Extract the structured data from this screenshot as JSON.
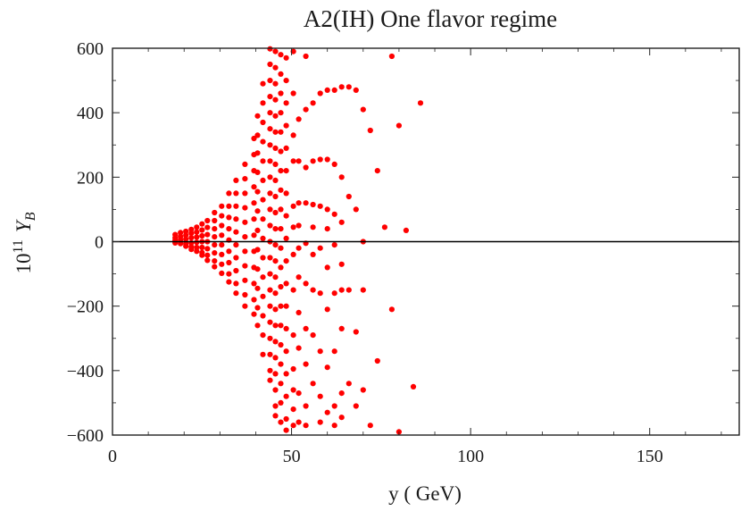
{
  "chart_data": {
    "type": "scatter",
    "title": "A2(IH) One flavor regime",
    "xlabel": "y ( GeV)",
    "ylabel": {
      "prefix": "10",
      "exponent": "11",
      "variable": "Y",
      "subscript": "B"
    },
    "xlim": [
      0,
      175
    ],
    "ylim": [
      -600,
      600
    ],
    "x_ticks": [
      0,
      50,
      100,
      150
    ],
    "x_tick_labels": [
      "0",
      "50",
      "100",
      "150"
    ],
    "y_ticks": [
      600,
      400,
      200,
      0,
      -200,
      -400,
      -600
    ],
    "y_tick_labels": [
      "600",
      "400",
      "200",
      "0",
      "−200",
      "−400",
      "−600"
    ],
    "zero_line": true,
    "grid": false,
    "marker_color": "#ff0000",
    "series": [
      {
        "points": [
          [
            17.5,
            22
          ],
          [
            17.5,
            12
          ],
          [
            17.5,
            4
          ],
          [
            17.5,
            -4
          ],
          [
            19,
            28
          ],
          [
            19,
            16
          ],
          [
            19,
            6
          ],
          [
            19,
            -6
          ],
          [
            20.5,
            32
          ],
          [
            20.5,
            20
          ],
          [
            20.5,
            8
          ],
          [
            20.5,
            -6
          ],
          [
            20.5,
            -14
          ],
          [
            22,
            38
          ],
          [
            22,
            26
          ],
          [
            22,
            12
          ],
          [
            22,
            -4
          ],
          [
            22,
            -16
          ],
          [
            22,
            -24
          ],
          [
            23.5,
            45
          ],
          [
            23.5,
            30
          ],
          [
            23.5,
            14
          ],
          [
            23.5,
            -2
          ],
          [
            23.5,
            -18
          ],
          [
            23.5,
            -30
          ],
          [
            25,
            55
          ],
          [
            25,
            36
          ],
          [
            25,
            18
          ],
          [
            25,
            0
          ],
          [
            25,
            -18
          ],
          [
            25,
            -34
          ],
          [
            25,
            -42
          ],
          [
            26.5,
            65
          ],
          [
            26.5,
            44
          ],
          [
            26.5,
            22
          ],
          [
            26.5,
            0
          ],
          [
            26.5,
            -22
          ],
          [
            26.5,
            -42
          ],
          [
            26.5,
            -58
          ],
          [
            28.5,
            90
          ],
          [
            28.5,
            65
          ],
          [
            28.5,
            40
          ],
          [
            28.5,
            15
          ],
          [
            28.5,
            -10
          ],
          [
            28.5,
            -35
          ],
          [
            28.5,
            -60
          ],
          [
            28.5,
            -78
          ],
          [
            30.5,
            110
          ],
          [
            30.5,
            80
          ],
          [
            30.5,
            50
          ],
          [
            30.5,
            20
          ],
          [
            30.5,
            -10
          ],
          [
            30.5,
            -40
          ],
          [
            30.5,
            -70
          ],
          [
            30.5,
            -98
          ],
          [
            32.5,
            150
          ],
          [
            32.5,
            110
          ],
          [
            32.5,
            75
          ],
          [
            32.5,
            40
          ],
          [
            32.5,
            5
          ],
          [
            32.5,
            -30
          ],
          [
            32.5,
            -65
          ],
          [
            32.5,
            -100
          ],
          [
            32.5,
            -125
          ],
          [
            34.5,
            190
          ],
          [
            34.5,
            150
          ],
          [
            34.5,
            110
          ],
          [
            34.5,
            70
          ],
          [
            34.5,
            30
          ],
          [
            34.5,
            -10
          ],
          [
            34.5,
            -50
          ],
          [
            34.5,
            -90
          ],
          [
            34.5,
            -130
          ],
          [
            34.5,
            -160
          ],
          [
            37,
            240
          ],
          [
            37,
            195
          ],
          [
            37,
            150
          ],
          [
            37,
            105
          ],
          [
            37,
            60
          ],
          [
            37,
            15
          ],
          [
            37,
            -30
          ],
          [
            37,
            -75
          ],
          [
            37,
            -120
          ],
          [
            37,
            -165
          ],
          [
            37,
            -200
          ],
          [
            39.5,
            320
          ],
          [
            39.5,
            270
          ],
          [
            39.5,
            220
          ],
          [
            39.5,
            170
          ],
          [
            39.5,
            120
          ],
          [
            39.5,
            70
          ],
          [
            39.5,
            20
          ],
          [
            39.5,
            -30
          ],
          [
            39.5,
            -80
          ],
          [
            39.5,
            -130
          ],
          [
            39.5,
            -180
          ],
          [
            39.5,
            -225
          ],
          [
            40.5,
            390
          ],
          [
            40.5,
            330
          ],
          [
            40.5,
            275
          ],
          [
            40.5,
            215
          ],
          [
            40.5,
            155
          ],
          [
            40.5,
            95
          ],
          [
            40.5,
            35
          ],
          [
            40.5,
            -25
          ],
          [
            40.5,
            -85
          ],
          [
            40.5,
            -145
          ],
          [
            40.5,
            -205
          ],
          [
            40.5,
            -260
          ],
          [
            42,
            490
          ],
          [
            42,
            430
          ],
          [
            42,
            370
          ],
          [
            42,
            310
          ],
          [
            42,
            250
          ],
          [
            42,
            190
          ],
          [
            42,
            130
          ],
          [
            42,
            70
          ],
          [
            42,
            10
          ],
          [
            42,
            -50
          ],
          [
            42,
            -110
          ],
          [
            42,
            -170
          ],
          [
            42,
            -230
          ],
          [
            42,
            -290
          ],
          [
            42,
            -350
          ],
          [
            44,
            598
          ],
          [
            44,
            550
          ],
          [
            44,
            500
          ],
          [
            44,
            450
          ],
          [
            44,
            400
          ],
          [
            44,
            350
          ],
          [
            44,
            300
          ],
          [
            44,
            250
          ],
          [
            44,
            200
          ],
          [
            44,
            150
          ],
          [
            44,
            100
          ],
          [
            44,
            50
          ],
          [
            44,
            0
          ],
          [
            44,
            -50
          ],
          [
            44,
            -100
          ],
          [
            44,
            -150
          ],
          [
            44,
            -200
          ],
          [
            44,
            -250
          ],
          [
            44,
            -300
          ],
          [
            44,
            -350
          ],
          [
            44,
            -400
          ],
          [
            44,
            -430
          ],
          [
            45.5,
            590
          ],
          [
            45.5,
            540
          ],
          [
            45.5,
            490
          ],
          [
            45.5,
            440
          ],
          [
            45.5,
            390
          ],
          [
            45.5,
            340
          ],
          [
            45.5,
            290
          ],
          [
            45.5,
            240
          ],
          [
            45.5,
            190
          ],
          [
            45.5,
            140
          ],
          [
            45.5,
            90
          ],
          [
            45.5,
            40
          ],
          [
            45.5,
            -10
          ],
          [
            45.5,
            -60
          ],
          [
            45.5,
            -110
          ],
          [
            45.5,
            -160
          ],
          [
            45.5,
            -210
          ],
          [
            45.5,
            -260
          ],
          [
            45.5,
            -310
          ],
          [
            45.5,
            -360
          ],
          [
            45.5,
            -410
          ],
          [
            45.5,
            -460
          ],
          [
            45.5,
            -510
          ],
          [
            45.5,
            -540
          ],
          [
            47,
            580
          ],
          [
            47,
            520
          ],
          [
            47,
            460
          ],
          [
            47,
            400
          ],
          [
            47,
            340
          ],
          [
            47,
            280
          ],
          [
            47,
            220
          ],
          [
            47,
            160
          ],
          [
            47,
            100
          ],
          [
            47,
            40
          ],
          [
            47,
            -20
          ],
          [
            47,
            -80
          ],
          [
            47,
            -140
          ],
          [
            47,
            -200
          ],
          [
            47,
            -260
          ],
          [
            47,
            -320
          ],
          [
            47,
            -380
          ],
          [
            47,
            -440
          ],
          [
            47,
            -500
          ],
          [
            47,
            -560
          ],
          [
            48.5,
            570
          ],
          [
            48.5,
            500
          ],
          [
            48.5,
            430
          ],
          [
            48.5,
            360
          ],
          [
            48.5,
            290
          ],
          [
            48.5,
            220
          ],
          [
            48.5,
            150
          ],
          [
            48.5,
            80
          ],
          [
            48.5,
            10
          ],
          [
            48.5,
            -60
          ],
          [
            48.5,
            -130
          ],
          [
            48.5,
            -200
          ],
          [
            48.5,
            -270
          ],
          [
            48.5,
            -340
          ],
          [
            48.5,
            -410
          ],
          [
            48.5,
            -480
          ],
          [
            48.5,
            -550
          ],
          [
            48.5,
            -585
          ],
          [
            50.5,
            590
          ],
          [
            50.5,
            460
          ],
          [
            50.5,
            330
          ],
          [
            50.5,
            250
          ],
          [
            50.5,
            110
          ],
          [
            50.5,
            45
          ],
          [
            50.5,
            -40
          ],
          [
            50.5,
            -150
          ],
          [
            50.5,
            -290
          ],
          [
            50.5,
            -395
          ],
          [
            50.5,
            -460
          ],
          [
            50.5,
            -520
          ],
          [
            50.5,
            -570
          ],
          [
            52,
            380
          ],
          [
            52,
            250
          ],
          [
            52,
            120
          ],
          [
            52,
            50
          ],
          [
            52,
            -20
          ],
          [
            52,
            -110
          ],
          [
            52,
            -220
          ],
          [
            52,
            -330
          ],
          [
            52,
            -470
          ],
          [
            52,
            -560
          ],
          [
            54,
            575
          ],
          [
            54,
            410
          ],
          [
            54,
            230
          ],
          [
            54,
            120
          ],
          [
            54,
            -5
          ],
          [
            54,
            -130
          ],
          [
            54,
            -270
          ],
          [
            54,
            -380
          ],
          [
            54,
            -510
          ],
          [
            54,
            -570
          ],
          [
            56,
            430
          ],
          [
            56,
            250
          ],
          [
            56,
            115
          ],
          [
            56,
            45
          ],
          [
            56,
            -40
          ],
          [
            56,
            -150
          ],
          [
            56,
            -290
          ],
          [
            56,
            -440
          ],
          [
            58,
            460
          ],
          [
            58,
            255
          ],
          [
            58,
            110
          ],
          [
            58,
            -20
          ],
          [
            58,
            -160
          ],
          [
            58,
            -340
          ],
          [
            58,
            -480
          ],
          [
            58,
            -560
          ],
          [
            60,
            470
          ],
          [
            60,
            255
          ],
          [
            60,
            100
          ],
          [
            60,
            40
          ],
          [
            60,
            -80
          ],
          [
            60,
            -210
          ],
          [
            60,
            -390
          ],
          [
            60,
            -530
          ],
          [
            62,
            470
          ],
          [
            62,
            240
          ],
          [
            62,
            85
          ],
          [
            62,
            -10
          ],
          [
            62,
            -160
          ],
          [
            62,
            -340
          ],
          [
            62,
            -510
          ],
          [
            62,
            -570
          ],
          [
            64,
            480
          ],
          [
            64,
            200
          ],
          [
            64,
            60
          ],
          [
            64,
            -70
          ],
          [
            64,
            -150
          ],
          [
            64,
            -270
          ],
          [
            64,
            -470
          ],
          [
            64,
            -545
          ],
          [
            66,
            480
          ],
          [
            66,
            140
          ],
          [
            66,
            -150
          ],
          [
            66,
            -440
          ],
          [
            68,
            470
          ],
          [
            68,
            100
          ],
          [
            68,
            -280
          ],
          [
            68,
            -510
          ],
          [
            70,
            410
          ],
          [
            70,
            0
          ],
          [
            70,
            -150
          ],
          [
            70,
            -460
          ],
          [
            72,
            345
          ],
          [
            72,
            -570
          ],
          [
            74,
            220
          ],
          [
            74,
            -370
          ],
          [
            76,
            45
          ],
          [
            78,
            575
          ],
          [
            78,
            -210
          ],
          [
            80,
            360
          ],
          [
            80,
            -590
          ],
          [
            82,
            35
          ],
          [
            84,
            -450
          ],
          [
            86,
            430
          ]
        ]
      }
    ]
  }
}
